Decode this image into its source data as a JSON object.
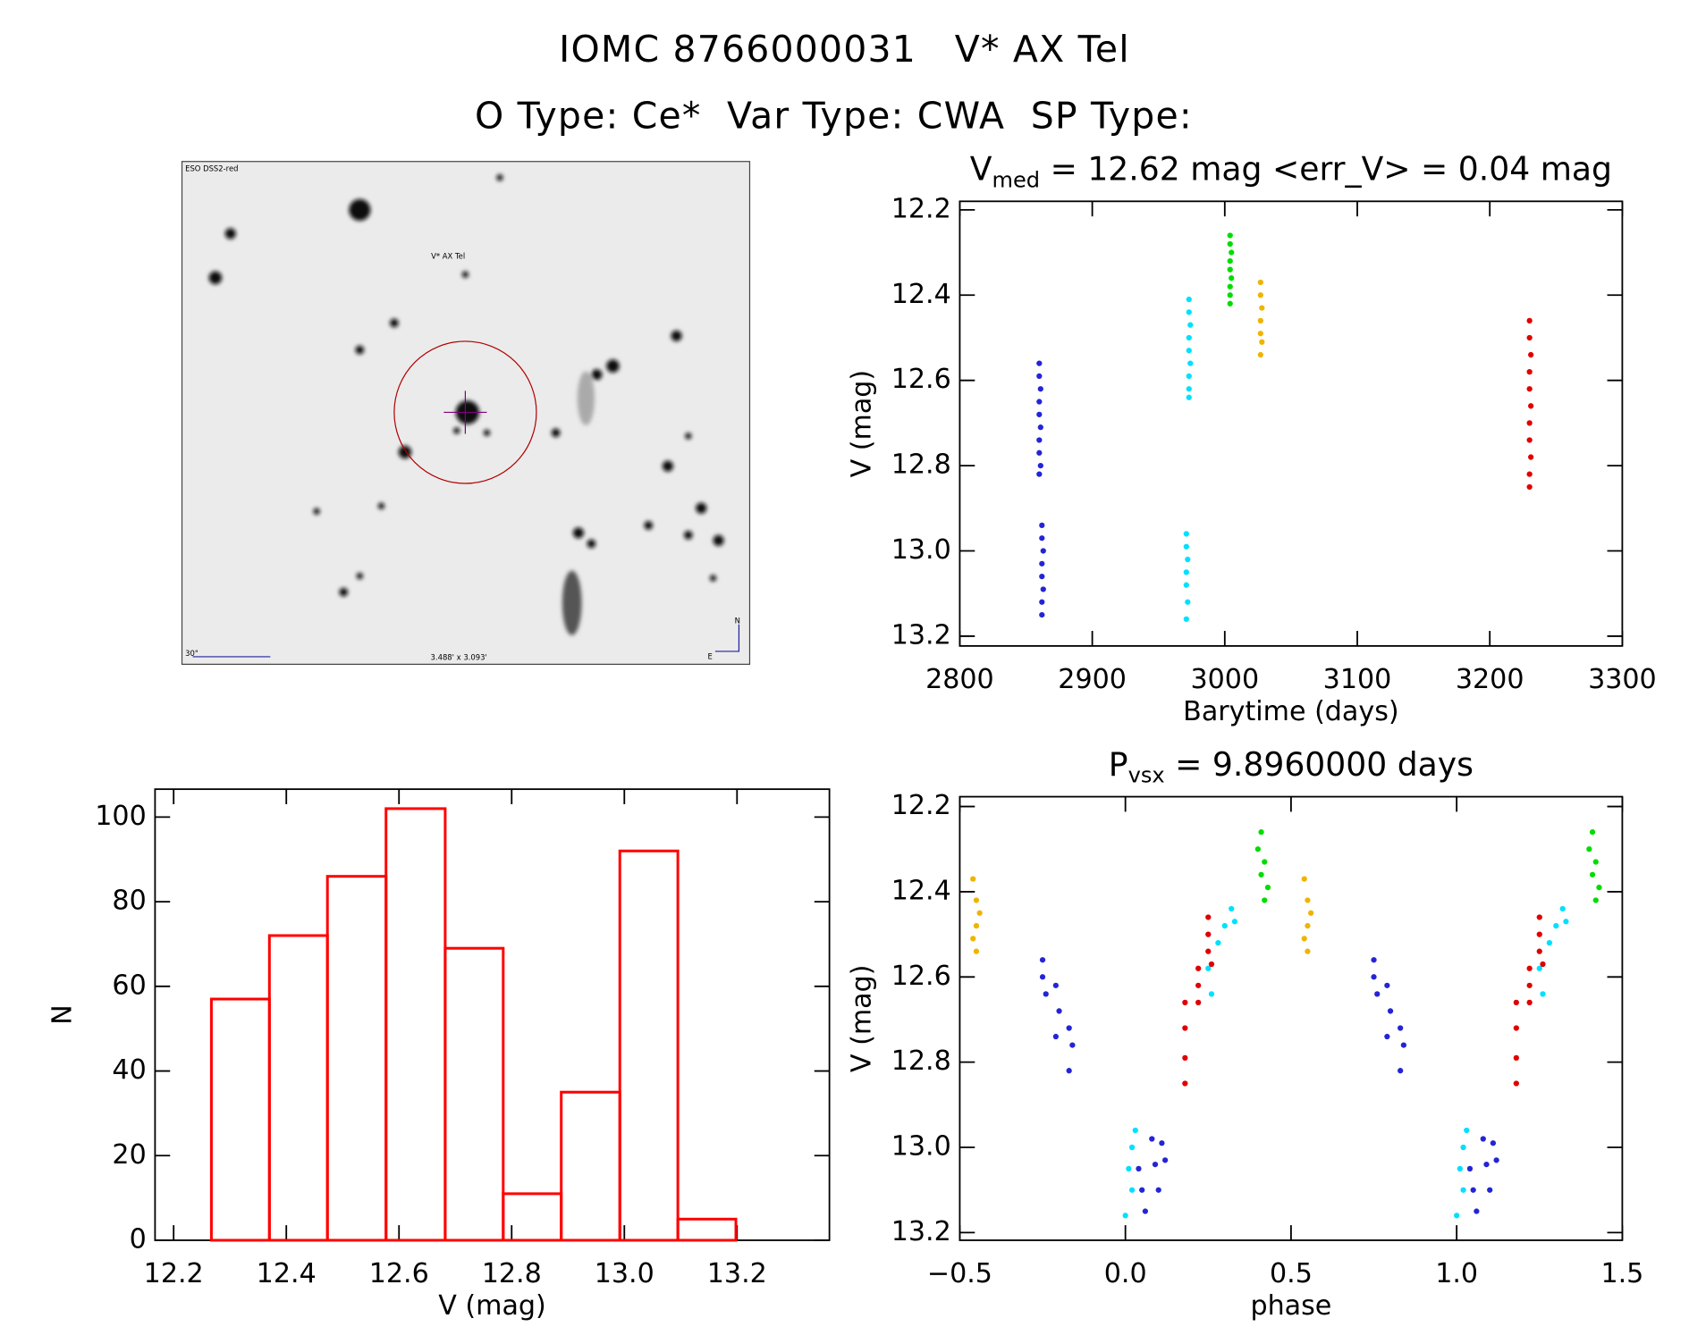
{
  "title": "IOMC 8766000031   V* AX Tel",
  "subtitle": "O Type: Ce*  Var Type: CWA  SP Type:",
  "image": {
    "survey": "ESO DSS2-red",
    "target": "V* AX Tel",
    "scale": "30\"",
    "field": "3.488' x 3.093'",
    "north": "N",
    "east": "E"
  },
  "chart_data": [
    {
      "type": "scatter",
      "title": {
        "text": "V",
        "subscript": "med",
        "rest": " = 12.62 mag <err_V> = 0.04 mag"
      },
      "xlabel": "Barytime (days)",
      "ylabel": "V (mag)",
      "xlim": [
        2800,
        3300
      ],
      "xticks": [
        2800,
        2900,
        3000,
        3100,
        3200,
        3300
      ],
      "ylim": [
        13.223,
        12.18
      ],
      "yticks": [
        12.2,
        12.4,
        12.6,
        12.8,
        {
          "value": 13,
          "label": "13.0"
        },
        13.2
      ],
      "series": [
        {
          "color": "#2424d6",
          "x": [
            2860,
            2860,
            2861,
            2860,
            2860,
            2861,
            2860,
            2860,
            2861,
            2860,
            2862,
            2862,
            2863,
            2862,
            2862,
            2863,
            2862,
            2862
          ],
          "y": [
            12.56,
            12.59,
            12.62,
            12.65,
            12.68,
            12.71,
            12.74,
            12.77,
            12.8,
            12.82,
            12.94,
            12.97,
            13.0,
            13.03,
            13.06,
            13.09,
            13.12,
            13.15
          ]
        },
        {
          "color": "#00e0ff",
          "x": [
            2973,
            2973,
            2974,
            2973,
            2973,
            2974,
            2973,
            2973,
            2973,
            2971,
            2971,
            2972,
            2971,
            2971,
            2972,
            2971
          ],
          "y": [
            12.41,
            12.44,
            12.47,
            12.5,
            12.53,
            12.56,
            12.59,
            12.62,
            12.64,
            12.96,
            12.99,
            13.02,
            13.05,
            13.08,
            13.12,
            13.16
          ]
        },
        {
          "color": "#00dd00",
          "x": [
            3004,
            3004,
            3005,
            3004,
            3004,
            3005,
            3004,
            3004,
            3004
          ],
          "y": [
            12.26,
            12.28,
            12.3,
            12.32,
            12.34,
            12.36,
            12.38,
            12.4,
            12.42
          ]
        },
        {
          "color": "#f0b400",
          "x": [
            3027,
            3027,
            3028,
            3027,
            3027,
            3028,
            3027
          ],
          "y": [
            12.37,
            12.4,
            12.43,
            12.46,
            12.49,
            12.51,
            12.54
          ]
        },
        {
          "color": "#e00000",
          "x": [
            3230,
            3230,
            3231,
            3230,
            3230,
            3231,
            3230,
            3230,
            3231,
            3230,
            3230
          ],
          "y": [
            12.46,
            12.5,
            12.54,
            12.58,
            12.62,
            12.66,
            12.7,
            12.74,
            12.78,
            12.82,
            12.85
          ]
        }
      ]
    },
    {
      "type": "histogram",
      "xlabel": "V (mag)",
      "ylabel": "N",
      "color": "#ff0000",
      "bins": [
        12.267,
        12.37,
        12.473,
        12.577,
        12.682,
        12.785,
        12.888,
        12.992,
        13.095,
        13.198
      ],
      "values": [
        57,
        72,
        86,
        102,
        69,
        11,
        35,
        92,
        5
      ],
      "xlim": [
        12.167,
        13.364
      ],
      "xticks": [
        12.2,
        12.4,
        12.6,
        12.8,
        {
          "value": 13,
          "label": "13.0"
        },
        13.2
      ],
      "ylim": [
        0,
        106.6
      ],
      "yticks": [
        0,
        20,
        40,
        60,
        80,
        100
      ]
    },
    {
      "type": "scatter",
      "title": {
        "text": "P",
        "subscript": "vsx",
        "rest": " = 9.8960000 days"
      },
      "xlabel": "phase",
      "ylabel": "V (mag)",
      "xlim": [
        -0.5,
        1.5
      ],
      "xticks": [
        {
          "value": -0.5,
          "label": "−0.5"
        },
        {
          "value": 0,
          "label": "0.0"
        },
        0.5,
        {
          "value": 1,
          "label": "1.0"
        },
        1.5
      ],
      "ylim": [
        13.218,
        12.177
      ],
      "yticks": [
        12.2,
        12.4,
        12.6,
        12.8,
        {
          "value": 13,
          "label": "13.0"
        },
        13.2
      ],
      "series": [
        {
          "color": "#f0b400",
          "x": [
            -0.46,
            -0.45,
            -0.44,
            -0.45,
            -0.46,
            -0.45,
            0.54,
            0.55,
            0.56,
            0.55,
            0.54,
            0.55
          ],
          "y": [
            12.37,
            12.42,
            12.45,
            12.48,
            12.51,
            12.54,
            12.37,
            12.42,
            12.45,
            12.48,
            12.51,
            12.54
          ]
        },
        {
          "color": "#2424d6",
          "x": [
            -0.25,
            -0.25,
            -0.24,
            -0.21,
            -0.2,
            -0.21,
            -0.17,
            -0.16,
            -0.17,
            0.04,
            0.05,
            0.06,
            0.08,
            0.09,
            0.1,
            0.11,
            0.12,
            0.75,
            0.75,
            0.76,
            0.79,
            0.8,
            0.79,
            0.83,
            0.84,
            0.83,
            1.04,
            1.05,
            1.06,
            1.08,
            1.09,
            1.1,
            1.11,
            1.12
          ],
          "y": [
            12.56,
            12.6,
            12.64,
            12.62,
            12.68,
            12.74,
            12.72,
            12.76,
            12.82,
            13.05,
            13.1,
            13.15,
            12.98,
            13.04,
            13.1,
            12.99,
            13.03,
            12.56,
            12.6,
            12.64,
            12.62,
            12.68,
            12.74,
            12.72,
            12.76,
            12.82,
            13.05,
            13.1,
            13.15,
            12.98,
            13.04,
            13.1,
            12.99,
            13.03
          ]
        },
        {
          "color": "#00e0ff",
          "x": [
            0,
            0.01,
            0.02,
            0.03,
            0.02,
            0.25,
            0.26,
            0.28,
            0.3,
            0.32,
            0.33,
            1,
            1.01,
            1.02,
            1.03,
            1.02,
            1.25,
            1.26,
            1.28,
            1.3,
            1.32,
            1.33
          ],
          "y": [
            13.16,
            13.05,
            13,
            12.96,
            13.1,
            12.58,
            12.64,
            12.52,
            12.48,
            12.44,
            12.47,
            13.16,
            13.05,
            13,
            12.96,
            13.1,
            12.58,
            12.64,
            12.52,
            12.48,
            12.44,
            12.47
          ]
        },
        {
          "color": "#e00000",
          "x": [
            0.18,
            0.18,
            0.18,
            0.18,
            0.22,
            0.22,
            0.22,
            0.25,
            0.25,
            0.25,
            0.26,
            1.18,
            1.18,
            1.18,
            1.18,
            1.22,
            1.22,
            1.22,
            1.25,
            1.25,
            1.25,
            1.26
          ],
          "y": [
            12.66,
            12.72,
            12.79,
            12.85,
            12.58,
            12.62,
            12.66,
            12.46,
            12.5,
            12.54,
            12.57,
            12.66,
            12.72,
            12.79,
            12.85,
            12.58,
            12.62,
            12.66,
            12.46,
            12.5,
            12.54,
            12.57
          ]
        },
        {
          "color": "#00dd00",
          "x": [
            0.41,
            0.4,
            0.42,
            0.41,
            0.43,
            0.42,
            1.41,
            1.4,
            1.42,
            1.41,
            1.43,
            1.42
          ],
          "y": [
            12.26,
            12.3,
            12.33,
            12.36,
            12.39,
            12.42,
            12.26,
            12.3,
            12.33,
            12.36,
            12.39,
            12.42
          ]
        }
      ]
    }
  ]
}
